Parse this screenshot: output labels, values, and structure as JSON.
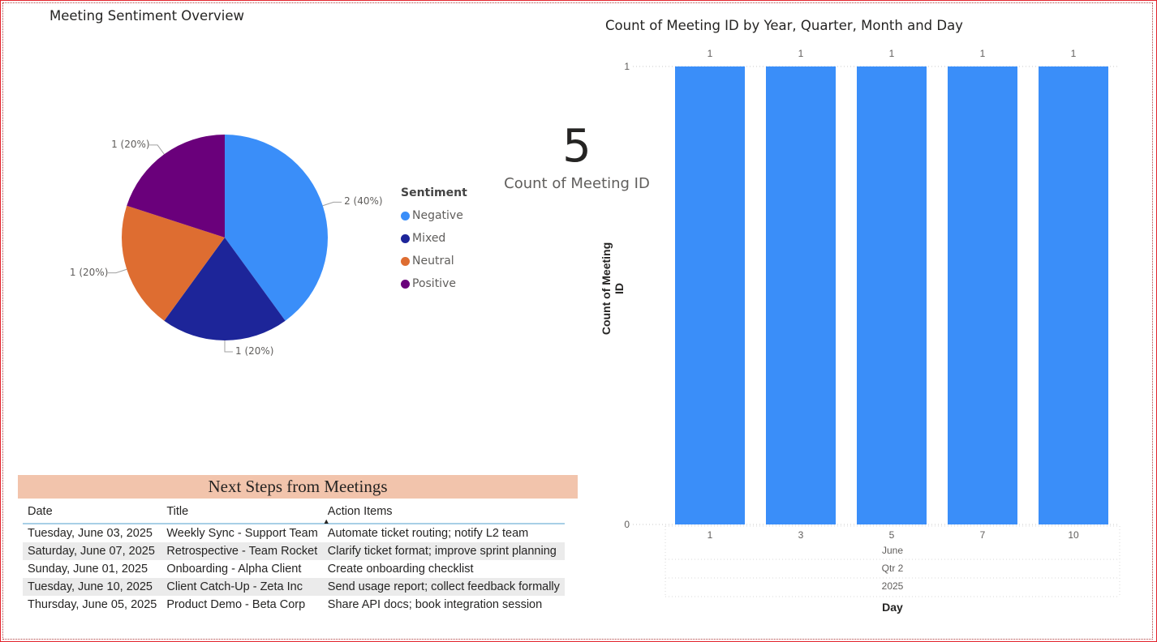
{
  "pie": {
    "title": "Meeting Sentiment Overview",
    "legend_title": "Sentiment",
    "slices": [
      {
        "name": "Negative",
        "value": 2,
        "label": "2 (40%)",
        "color": "#3a8ef9"
      },
      {
        "name": "Mixed",
        "value": 1,
        "label": "1 (20%)",
        "color": "#1d2599"
      },
      {
        "name": "Neutral",
        "value": 1,
        "label": "1 (20%)",
        "color": "#de6d31"
      },
      {
        "name": "Positive",
        "value": 1,
        "label": "1 (20%)",
        "color": "#6a007b"
      }
    ]
  },
  "card": {
    "value": "5",
    "label": "Count of Meeting ID"
  },
  "table": {
    "title": "Next Steps from Meetings",
    "headers": [
      "Date",
      "Title",
      "Action Items"
    ],
    "sort_indicator": "▲",
    "rows": [
      [
        "Tuesday, June 03, 2025",
        "Weekly Sync - Support Team",
        "Automate ticket routing; notify L2 team"
      ],
      [
        "Saturday, June 07, 2025",
        "Retrospective - Team Rocket",
        "Clarify ticket format; improve sprint planning"
      ],
      [
        "Sunday, June 01, 2025",
        "Onboarding - Alpha Client",
        "Create onboarding checklist"
      ],
      [
        "Tuesday, June 10, 2025",
        "Client Catch-Up - Zeta Inc",
        "Send usage report; collect feedback formally"
      ],
      [
        "Thursday, June 05, 2025",
        "Product Demo - Beta Corp",
        "Share API docs; book integration session"
      ]
    ]
  },
  "chart_data": {
    "type": "bar",
    "title": "Count of Meeting ID by Year, Quarter, Month and Day",
    "categories": [
      "1",
      "3",
      "5",
      "7",
      "10"
    ],
    "values": [
      1,
      1,
      1,
      1,
      1
    ],
    "data_labels": [
      "1",
      "1",
      "1",
      "1",
      "1"
    ],
    "ylabel": "Count of Meeting ID",
    "xlabel": "Day",
    "hierarchy": {
      "month": "June",
      "quarter": "Qtr 2",
      "year": "2025"
    },
    "y_ticks": [
      "0",
      "1"
    ],
    "ylim": [
      0,
      1
    ],
    "color": "#3a8ef9",
    "grid": true
  }
}
